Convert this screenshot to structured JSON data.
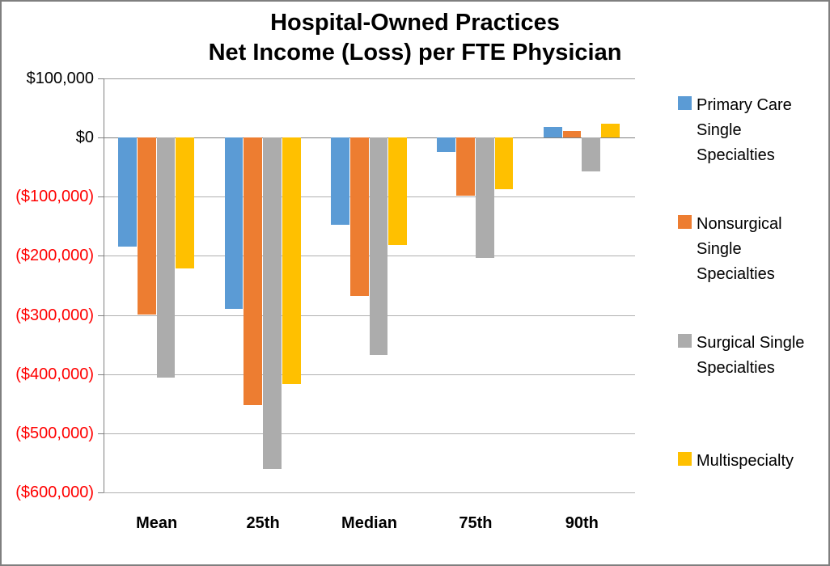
{
  "title": {
    "line1": "Hospital-Owned Practices",
    "line2": "Net Income (Loss) per FTE Physician"
  },
  "chart_data": {
    "type": "bar",
    "title": "Hospital-Owned Practices Net Income (Loss) per FTE Physician",
    "categories": [
      "Mean",
      "25th",
      "Median",
      "75th",
      "90th"
    ],
    "series": [
      {
        "name": "Primary Care Single Specialties",
        "color": "#5B9BD5",
        "pattern": false,
        "values": [
          -185000,
          -290000,
          -148000,
          -24000,
          18000
        ]
      },
      {
        "name": "Nonsurgical Single Specialties",
        "color": "#ED7D31",
        "pattern": false,
        "values": [
          -300000,
          -453000,
          -268000,
          -98000,
          11000
        ]
      },
      {
        "name": "Surgical Single Specialties",
        "color": "#ACACAC",
        "pattern": true,
        "values": [
          -406000,
          -560000,
          -368000,
          -203000,
          -57000
        ]
      },
      {
        "name": "Multispecialty",
        "color": "#FFC000",
        "pattern": false,
        "values": [
          -222000,
          -417000,
          -182000,
          -88000,
          24000
        ]
      }
    ],
    "ylim": [
      -600000,
      100000
    ],
    "ytick_step": 100000,
    "ytick_labels_top_to_bottom": [
      "$100,000",
      "$0",
      "($100,000)",
      "($200,000)",
      "($300,000)",
      "($400,000)",
      "($500,000)",
      "($600,000)"
    ],
    "tick_label_color_positive": "#000000",
    "tick_label_color_negative": "#FF0000",
    "grid": true,
    "gridline_color": "#B0B0B0",
    "zero_axis_color": "#7F7F7F",
    "legend_position": "right",
    "xlabel": "",
    "ylabel": ""
  }
}
